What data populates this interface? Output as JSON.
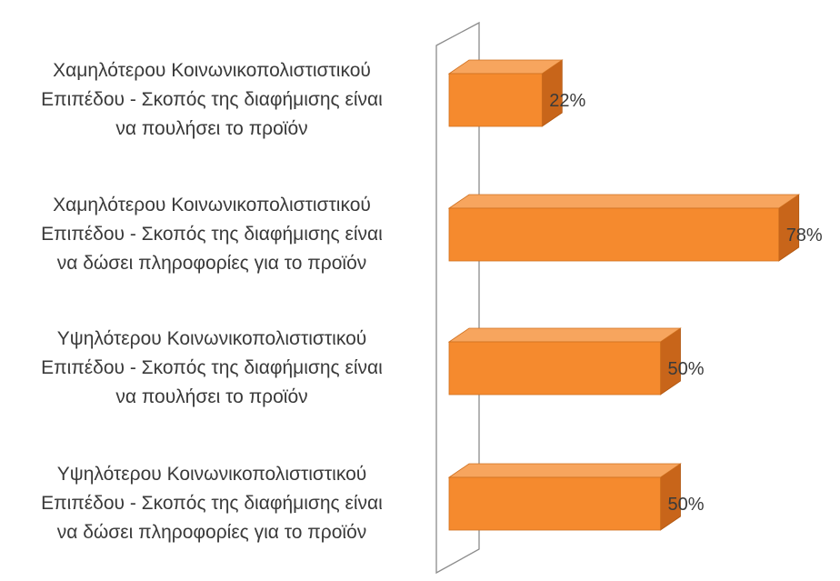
{
  "chart_data": {
    "type": "bar",
    "orientation": "horizontal",
    "style": "3d",
    "title": "",
    "xlabel": "",
    "ylabel": "",
    "xlim": [
      0,
      1
    ],
    "grid": false,
    "legend": "none",
    "bar_color": "#F58A2E",
    "categories": [
      {
        "lines": [
          "Χαμηλότερου Κοινωνικοπολιστιστικού",
          "Επιπέδου - Σκοπός της διαφήμισης είναι",
          "να πουλήσει το προϊόν"
        ],
        "value": 0.22,
        "value_label": "22%"
      },
      {
        "lines": [
          "Χαμηλότερου Κοινωνικοπολιστιστικού",
          "Επιπέδου - Σκοπός της διαφήμισης είναι",
          "να δώσει πληροφορίες για το προϊόν"
        ],
        "value": 0.78,
        "value_label": "78%"
      },
      {
        "lines": [
          "Υψηλότερου Κοινωνικοπολιστιστικού",
          "Επιπέδου - Σκοπός της διαφήμισης είναι",
          "να πουλήσει το προϊόν"
        ],
        "value": 0.5,
        "value_label": "50%"
      },
      {
        "lines": [
          "Υψηλότερου Κοινωνικοπολιστιστικού",
          "Επιπέδου - Σκοπός της διαφήμισης είναι",
          "να δώσει πληροφορίες για το προϊόν"
        ],
        "value": 0.5,
        "value_label": "50%"
      }
    ]
  }
}
